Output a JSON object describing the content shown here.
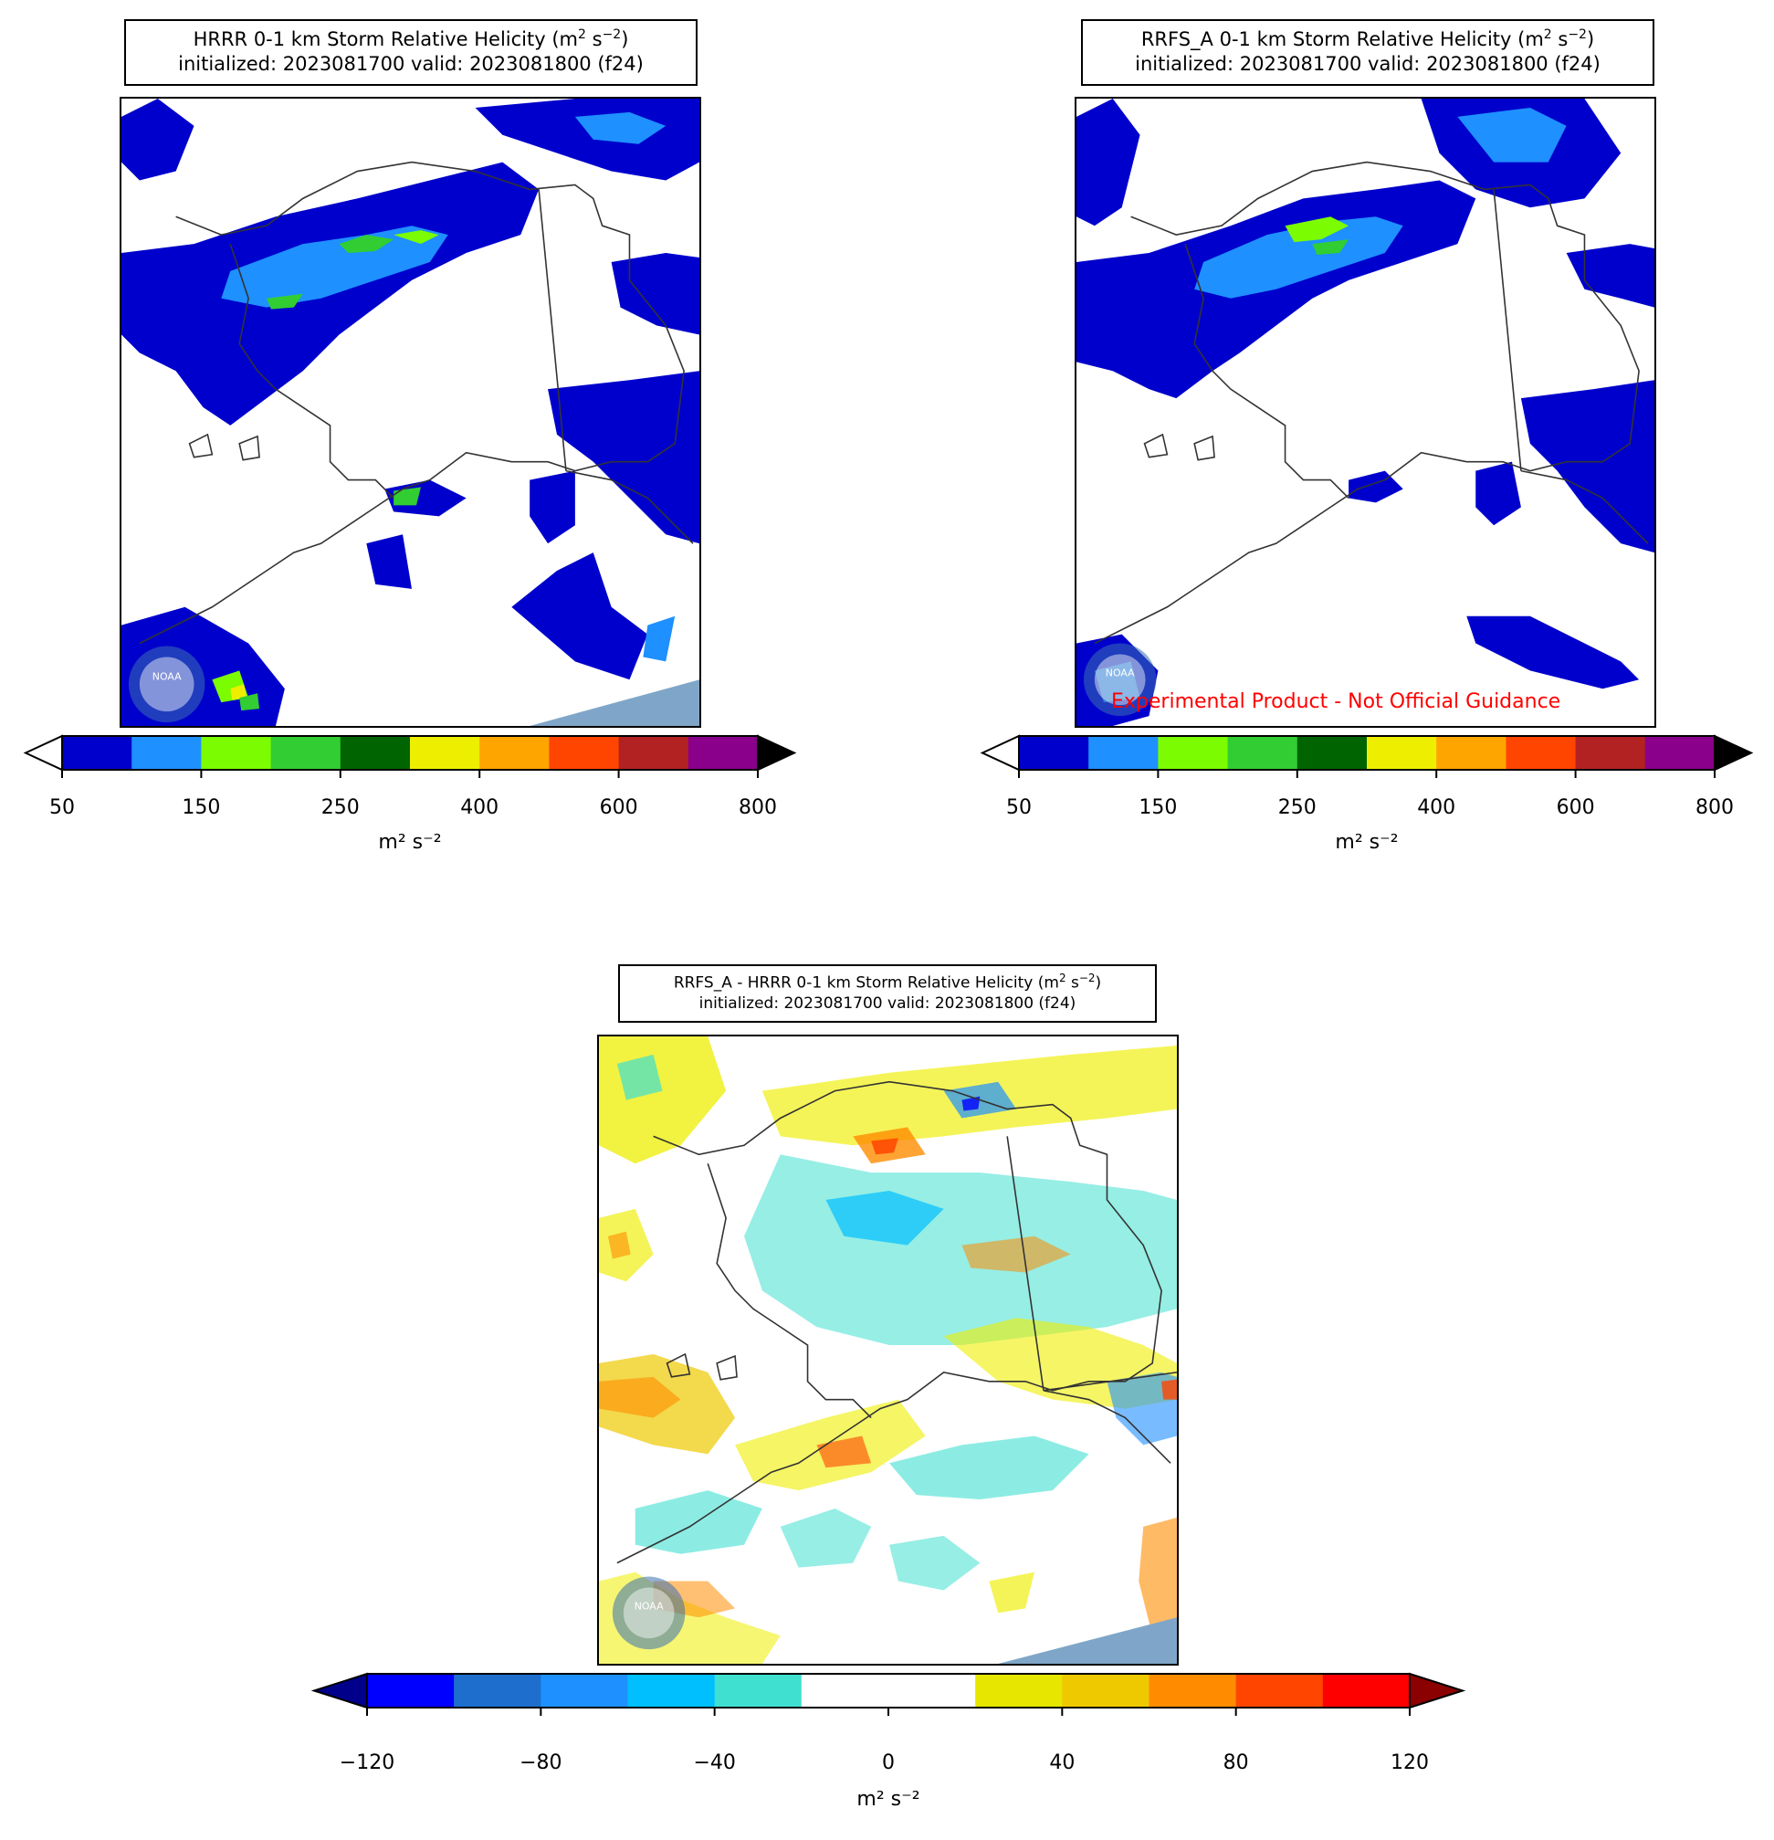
{
  "panels": [
    {
      "id": "hrrr",
      "title_line1": "HRRR 0-1 km Storm Relative Helicity (m",
      "title_line2": "initialized: 2023081700 valid: 2023081800 (f24)",
      "colorbar": {
        "colors": [
          "#0000cd",
          "#1e90ff",
          "#7cfc00",
          "#32cd32",
          "#006400",
          "#eeee00",
          "#ffa500",
          "#ff4500",
          "#b22222",
          "#8b008b"
        ],
        "under_color": "#ffffff",
        "over_color": "#000000",
        "ticks": [
          "50",
          "150",
          "250",
          "400",
          "600",
          "800"
        ],
        "unit": "m² s⁻²"
      }
    },
    {
      "id": "rrfs",
      "title_line1": "RRFS_A 0-1 km Storm Relative Helicity (m",
      "title_line2": "initialized: 2023081700 valid: 2023081800 (f24)",
      "watermark_text": "Experimental Product - Not Official Guidance",
      "colorbar": {
        "colors": [
          "#0000cd",
          "#1e90ff",
          "#7cfc00",
          "#32cd32",
          "#006400",
          "#eeee00",
          "#ffa500",
          "#ff4500",
          "#b22222",
          "#8b008b"
        ],
        "under_color": "#ffffff",
        "over_color": "#000000",
        "ticks": [
          "50",
          "150",
          "250",
          "400",
          "600",
          "800"
        ],
        "unit": "m² s⁻²"
      }
    },
    {
      "id": "diff",
      "title_line1": "RRFS_A - HRRR 0-1 km Storm Relative Helicity (m",
      "title_line2": "initialized: 2023081700 valid: 2023081800 (f24)",
      "colorbar": {
        "colors": [
          "#0000ff",
          "#1e6fcd",
          "#1e90ff",
          "#00bfff",
          "#40e0d0",
          "#ffffff",
          "#ffffff",
          "#e6e600",
          "#eec900",
          "#ff8c00",
          "#ff4500",
          "#ff0000"
        ],
        "under_color": "#00008b",
        "over_color": "#8b0000",
        "ticks": [
          "−120",
          "−80",
          "−40",
          "0",
          "40",
          "80",
          "120"
        ],
        "unit": "m² s⁻²"
      }
    }
  ],
  "title_superscript": "2",
  "title_superscript_neg": "−2",
  "title_close": ")",
  "title_unit_s": " s",
  "logo_text": "NOAA"
}
